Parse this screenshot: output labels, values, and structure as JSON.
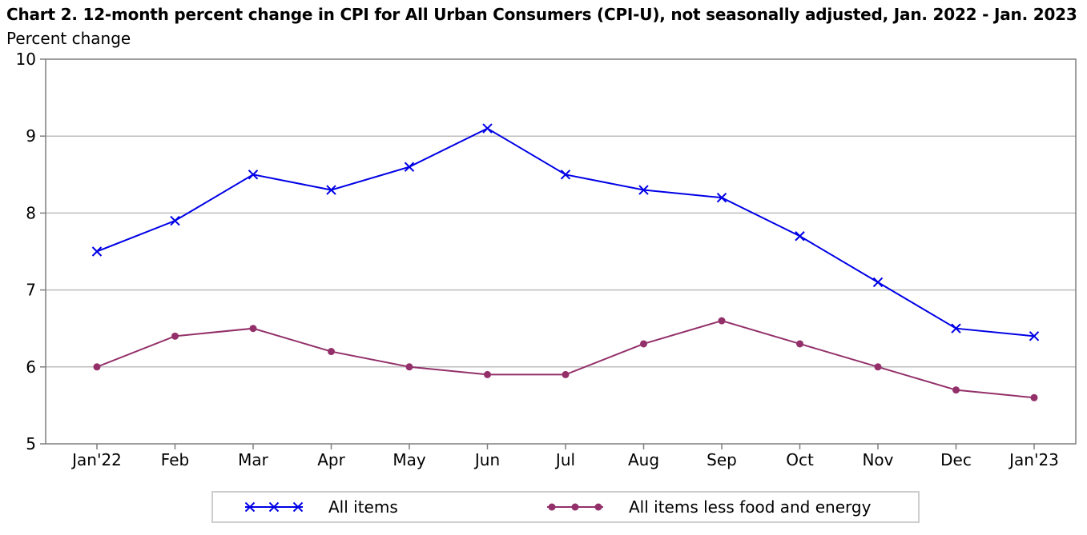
{
  "chart_data": {
    "type": "line",
    "title": "Chart 2. 12-month percent change in CPI for All Urban Consumers (CPI-U), not seasonally adjusted, Jan. 2022 - Jan. 2023",
    "ylabel": "Percent change",
    "xlabel": "",
    "categories": [
      "Jan'22",
      "Feb",
      "Mar",
      "Apr",
      "May",
      "Jun",
      "Jul",
      "Aug",
      "Sep",
      "Oct",
      "Nov",
      "Dec",
      "Jan'23"
    ],
    "ylim": [
      5,
      10
    ],
    "yticks": [
      "5",
      "6",
      "7",
      "8",
      "9",
      "10"
    ],
    "grid": true,
    "legend_position": "bottom",
    "series": [
      {
        "name": "All items",
        "values": [
          7.5,
          7.9,
          8.5,
          8.3,
          8.6,
          9.1,
          8.5,
          8.3,
          8.2,
          7.7,
          7.1,
          6.5,
          6.4
        ],
        "color": "#0000e6",
        "marker": "x"
      },
      {
        "name": "All items less food and energy",
        "values": [
          6.0,
          6.4,
          6.5,
          6.2,
          6.0,
          5.9,
          5.9,
          6.3,
          6.6,
          6.3,
          6.0,
          5.7,
          5.6
        ],
        "color": "#93306a",
        "marker": "circle"
      }
    ]
  }
}
